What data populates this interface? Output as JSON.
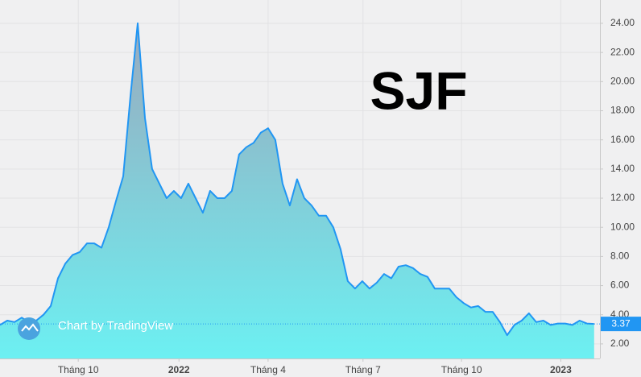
{
  "chart_data": {
    "type": "area",
    "title": "SJF",
    "watermark": "Chart by TradingView",
    "x": [
      0,
      1,
      2,
      3,
      4,
      5,
      6,
      7,
      8,
      9,
      10,
      11,
      12,
      13,
      14,
      15,
      16,
      17,
      18,
      19,
      20,
      21,
      22,
      23,
      24,
      25,
      26,
      27,
      28,
      29,
      30,
      31,
      32,
      33,
      34,
      35,
      36,
      37,
      38,
      39,
      40,
      41,
      42,
      43,
      44,
      45,
      46,
      47,
      48,
      49,
      50,
      51,
      52,
      53,
      54,
      55,
      56,
      57,
      58,
      59,
      60,
      61,
      62,
      63,
      64,
      65,
      66,
      67,
      68,
      69,
      70,
      71,
      72,
      73,
      74,
      75,
      76,
      77,
      78,
      79,
      80,
      81,
      82
    ],
    "xlim": [
      0,
      82.8
    ],
    "xticks": [
      {
        "value": 10.8,
        "label": "Tháng 10"
      },
      {
        "value": 24.7,
        "label": "2022"
      },
      {
        "value": 37,
        "label": "Tháng 4"
      },
      {
        "value": 50.1,
        "label": "Tháng 7"
      },
      {
        "value": 63.7,
        "label": "Tháng 10"
      },
      {
        "value": 77.4,
        "label": "2023"
      }
    ],
    "ylim": [
      1.0,
      25.6
    ],
    "yticks": [
      {
        "value": 2,
        "label": "2.00"
      },
      {
        "value": 4,
        "label": "4.00"
      },
      {
        "value": 6,
        "label": "6.00"
      },
      {
        "value": 8,
        "label": "8.00"
      },
      {
        "value": 10,
        "label": "10.00"
      },
      {
        "value": 12,
        "label": "12.00"
      },
      {
        "value": 14,
        "label": "14.00"
      },
      {
        "value": 16,
        "label": "16.00"
      },
      {
        "value": 18,
        "label": "18.00"
      },
      {
        "value": 20,
        "label": "20.00"
      },
      {
        "value": 22,
        "label": "22.00"
      },
      {
        "value": 24,
        "label": "24.00"
      }
    ],
    "grid": true,
    "series": [
      {
        "color": "#2196f3",
        "values": [
          3.3,
          3.6,
          3.5,
          3.8,
          3.5,
          3.6,
          4.0,
          4.6,
          6.5,
          7.5,
          8.1,
          8.3,
          8.9,
          8.9,
          8.6,
          10.0,
          11.8,
          13.5,
          19.0,
          24.0,
          17.5,
          14.0,
          13.0,
          12.0,
          12.5,
          12.0,
          13.0,
          12.0,
          11.0,
          12.5,
          12.0,
          12.0,
          12.5,
          15.0,
          15.5,
          15.8,
          16.5,
          16.8,
          16.0,
          13.0,
          11.5,
          13.3,
          12.0,
          11.5,
          10.8,
          10.8,
          10.0,
          8.5,
          6.3,
          5.8,
          6.3,
          5.8,
          6.2,
          6.8,
          6.5,
          7.3,
          7.4,
          7.2,
          6.8,
          6.6,
          5.8,
          5.8,
          5.8,
          5.2,
          4.8,
          4.5,
          4.6,
          4.2,
          4.2,
          3.5,
          2.6,
          3.3,
          3.6,
          4.1,
          3.5,
          3.6,
          3.3,
          3.4,
          3.4,
          3.3,
          3.6,
          3.4,
          3.37
        ]
      }
    ]
  }
}
